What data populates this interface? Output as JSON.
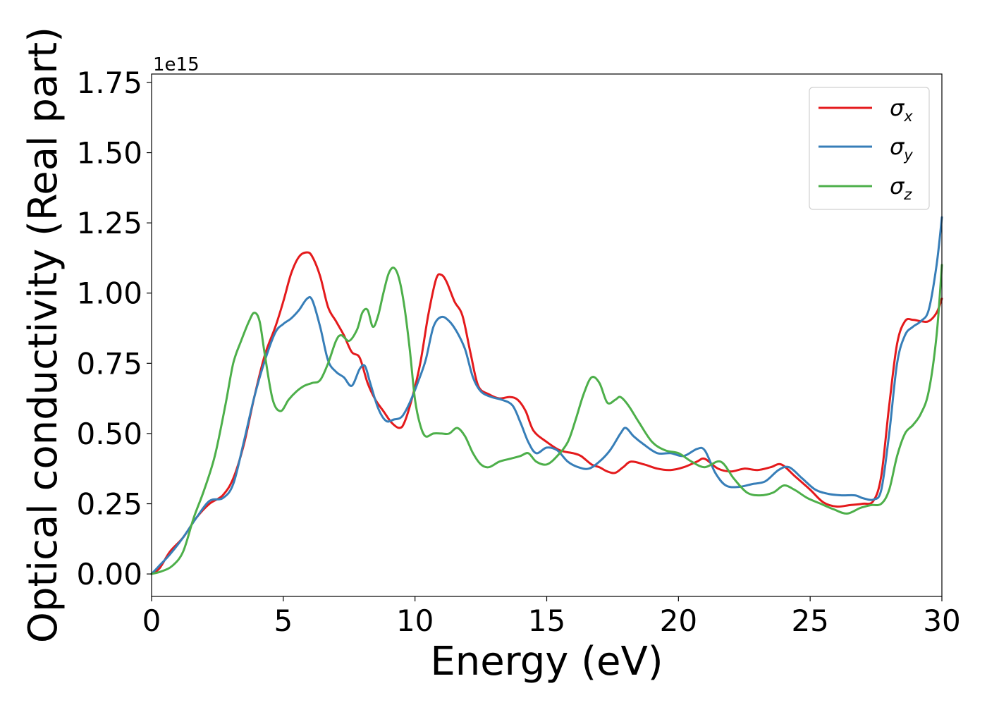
{
  "chart_data": {
    "type": "line",
    "title": "",
    "xlabel": "Energy (eV)",
    "ylabel": "Optical conductivity (Real part)",
    "y_offset_label": "1e15",
    "xlim": [
      0,
      30
    ],
    "ylim": [
      -0.08,
      1.78
    ],
    "xticks": [
      0,
      5,
      10,
      15,
      20,
      25,
      30
    ],
    "xtick_labels": [
      "0",
      "5",
      "10",
      "15",
      "20",
      "25",
      "30"
    ],
    "yticks": [
      0,
      0.25,
      0.5,
      0.75,
      1.0,
      1.25,
      1.5,
      1.75
    ],
    "ytick_labels": [
      "0.00",
      "0.25",
      "0.50",
      "0.75",
      "1.00",
      "1.25",
      "1.50",
      "1.75"
    ],
    "grid": false,
    "legend_position": "top-right",
    "series": [
      {
        "name": "σx",
        "symbol": "σ",
        "subscript": "x",
        "color": "#e41a1c",
        "x": [
          0,
          0.3,
          0.7,
          1.2,
          1.7,
          2.2,
          2.7,
          3.1,
          3.5,
          3.9,
          4.3,
          4.7,
          5.0,
          5.3,
          5.6,
          5.9,
          6.1,
          6.4,
          6.7,
          7.0,
          7.3,
          7.6,
          7.9,
          8.2,
          8.5,
          8.8,
          9.1,
          9.4,
          9.6,
          9.9,
          10.2,
          10.5,
          10.8,
          11.0,
          11.2,
          11.5,
          11.8,
          12.1,
          12.4,
          12.8,
          13.2,
          13.6,
          13.9,
          14.2,
          14.5,
          15.0,
          15.5,
          16.0,
          16.3,
          16.7,
          17.0,
          17.3,
          17.6,
          17.9,
          18.2,
          18.7,
          19.2,
          19.7,
          20.2,
          20.7,
          21.0,
          21.5,
          22.0,
          22.5,
          23.0,
          23.5,
          23.9,
          24.4,
          25.0,
          25.5,
          26.0,
          26.5,
          27.0,
          27.4,
          27.7,
          28.0,
          28.3,
          28.6,
          28.9,
          29.2,
          29.5,
          29.8,
          30.0
        ],
        "y": [
          0,
          0.02,
          0.08,
          0.13,
          0.2,
          0.25,
          0.28,
          0.34,
          0.46,
          0.63,
          0.78,
          0.88,
          0.97,
          1.07,
          1.13,
          1.145,
          1.13,
          1.06,
          0.95,
          0.9,
          0.85,
          0.79,
          0.77,
          0.68,
          0.62,
          0.58,
          0.54,
          0.52,
          0.54,
          0.63,
          0.75,
          0.92,
          1.05,
          1.065,
          1.04,
          0.97,
          0.92,
          0.79,
          0.67,
          0.64,
          0.625,
          0.63,
          0.62,
          0.58,
          0.51,
          0.47,
          0.44,
          0.43,
          0.42,
          0.39,
          0.38,
          0.365,
          0.36,
          0.38,
          0.4,
          0.39,
          0.375,
          0.37,
          0.38,
          0.4,
          0.41,
          0.375,
          0.365,
          0.375,
          0.37,
          0.38,
          0.39,
          0.35,
          0.3,
          0.255,
          0.24,
          0.245,
          0.25,
          0.26,
          0.35,
          0.6,
          0.82,
          0.9,
          0.905,
          0.9,
          0.9,
          0.93,
          0.98
        ]
      },
      {
        "name": "σy",
        "symbol": "σ",
        "subscript": "y",
        "color": "#377eb8",
        "x": [
          0,
          0.3,
          0.7,
          1.2,
          1.7,
          2.2,
          2.7,
          3.1,
          3.5,
          3.9,
          4.3,
          4.7,
          5.0,
          5.3,
          5.6,
          5.9,
          6.1,
          6.4,
          6.7,
          7.0,
          7.3,
          7.6,
          7.9,
          8.1,
          8.3,
          8.6,
          8.9,
          9.2,
          9.5,
          9.8,
          10.1,
          10.4,
          10.7,
          11.0,
          11.3,
          11.6,
          11.9,
          12.2,
          12.5,
          12.9,
          13.3,
          13.7,
          14.0,
          14.3,
          14.6,
          15.0,
          15.4,
          15.8,
          16.2,
          16.6,
          17.0,
          17.4,
          17.8,
          18.0,
          18.3,
          18.7,
          19.2,
          19.7,
          20.2,
          20.7,
          21.0,
          21.4,
          21.8,
          22.3,
          22.8,
          23.3,
          23.8,
          24.2,
          24.7,
          25.2,
          25.7,
          26.2,
          26.7,
          27.0,
          27.4,
          27.7,
          28.0,
          28.3,
          28.6,
          28.9,
          29.2,
          29.5,
          29.8,
          30.0
        ],
        "y": [
          0,
          0.03,
          0.07,
          0.13,
          0.2,
          0.26,
          0.27,
          0.32,
          0.47,
          0.63,
          0.76,
          0.86,
          0.89,
          0.91,
          0.94,
          0.98,
          0.975,
          0.88,
          0.76,
          0.72,
          0.7,
          0.67,
          0.73,
          0.74,
          0.68,
          0.59,
          0.545,
          0.55,
          0.56,
          0.61,
          0.68,
          0.76,
          0.88,
          0.915,
          0.9,
          0.86,
          0.8,
          0.7,
          0.65,
          0.63,
          0.62,
          0.6,
          0.54,
          0.47,
          0.43,
          0.45,
          0.44,
          0.4,
          0.38,
          0.375,
          0.4,
          0.44,
          0.5,
          0.52,
          0.49,
          0.46,
          0.43,
          0.43,
          0.42,
          0.445,
          0.44,
          0.36,
          0.315,
          0.31,
          0.32,
          0.33,
          0.37,
          0.38,
          0.34,
          0.3,
          0.285,
          0.28,
          0.28,
          0.27,
          0.265,
          0.3,
          0.5,
          0.75,
          0.85,
          0.88,
          0.9,
          0.94,
          1.1,
          1.27
        ]
      },
      {
        "name": "σz",
        "symbol": "σ",
        "subscript": "z",
        "color": "#4daf4a",
        "x": [
          0,
          0.4,
          0.8,
          1.2,
          1.6,
          2.0,
          2.4,
          2.8,
          3.1,
          3.4,
          3.7,
          3.9,
          4.1,
          4.3,
          4.6,
          4.9,
          5.2,
          5.5,
          5.8,
          6.1,
          6.4,
          6.7,
          7.0,
          7.2,
          7.5,
          7.8,
          8.0,
          8.2,
          8.4,
          8.6,
          8.8,
          9.0,
          9.2,
          9.4,
          9.6,
          9.8,
          10.0,
          10.2,
          10.4,
          10.7,
          11.0,
          11.3,
          11.6,
          11.9,
          12.2,
          12.5,
          12.8,
          13.2,
          13.6,
          14.0,
          14.3,
          14.6,
          15.0,
          15.4,
          15.8,
          16.1,
          16.4,
          16.7,
          17.0,
          17.3,
          17.6,
          17.8,
          18.1,
          18.5,
          19.0,
          19.5,
          20.0,
          20.5,
          21.0,
          21.6,
          22.1,
          22.6,
          23.1,
          23.6,
          24.0,
          24.4,
          24.9,
          25.4,
          25.9,
          26.4,
          26.9,
          27.3,
          27.7,
          28.0,
          28.3,
          28.6,
          28.9,
          29.2,
          29.5,
          29.8,
          30.0
        ],
        "y": [
          0,
          0.01,
          0.03,
          0.08,
          0.2,
          0.3,
          0.42,
          0.6,
          0.75,
          0.83,
          0.9,
          0.93,
          0.9,
          0.78,
          0.62,
          0.58,
          0.62,
          0.65,
          0.67,
          0.68,
          0.69,
          0.75,
          0.83,
          0.85,
          0.83,
          0.87,
          0.93,
          0.94,
          0.88,
          0.92,
          1.0,
          1.07,
          1.09,
          1.05,
          0.95,
          0.8,
          0.62,
          0.53,
          0.49,
          0.5,
          0.5,
          0.5,
          0.52,
          0.49,
          0.43,
          0.39,
          0.38,
          0.4,
          0.41,
          0.42,
          0.43,
          0.4,
          0.39,
          0.42,
          0.47,
          0.55,
          0.64,
          0.7,
          0.68,
          0.61,
          0.62,
          0.63,
          0.6,
          0.54,
          0.47,
          0.44,
          0.43,
          0.4,
          0.38,
          0.4,
          0.34,
          0.29,
          0.28,
          0.29,
          0.315,
          0.3,
          0.27,
          0.25,
          0.23,
          0.215,
          0.235,
          0.245,
          0.25,
          0.3,
          0.42,
          0.5,
          0.53,
          0.57,
          0.65,
          0.85,
          1.1
        ]
      }
    ]
  }
}
